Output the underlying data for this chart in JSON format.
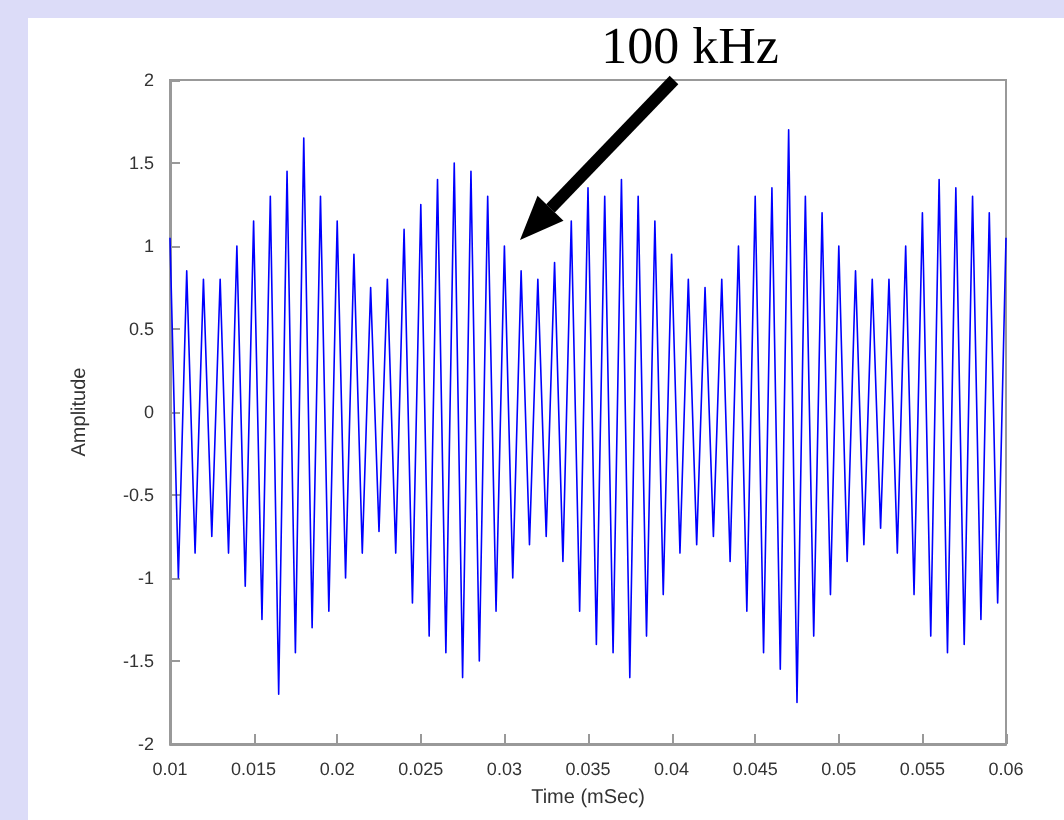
{
  "chart_data": {
    "type": "line",
    "xlabel": "Time (mSec)",
    "ylabel": "Amplitude",
    "annotations": [
      "100 kHz"
    ],
    "x": [
      0.01,
      0.0105,
      0.011,
      0.0115,
      0.012,
      0.0125,
      0.013,
      0.0135,
      0.014,
      0.0145,
      0.015,
      0.0155,
      0.016,
      0.0165,
      0.017,
      0.0175,
      0.018,
      0.0185,
      0.019,
      0.0195,
      0.02,
      0.0205,
      0.021,
      0.0215,
      0.022,
      0.0225,
      0.023,
      0.0235,
      0.024,
      0.0245,
      0.025,
      0.0255,
      0.026,
      0.0265,
      0.027,
      0.0275,
      0.028,
      0.0285,
      0.029,
      0.0295,
      0.03,
      0.0305,
      0.031,
      0.0315,
      0.032,
      0.0325,
      0.033,
      0.0335,
      0.034,
      0.0345,
      0.035,
      0.0355,
      0.036,
      0.0365,
      0.037,
      0.0375,
      0.038,
      0.0385,
      0.039,
      0.0395,
      0.04,
      0.0405,
      0.041,
      0.0415,
      0.042,
      0.0425,
      0.043,
      0.0435,
      0.044,
      0.0445,
      0.045,
      0.0455,
      0.046,
      0.0465,
      0.047,
      0.0475,
      0.048,
      0.0485,
      0.049,
      0.0495,
      0.05,
      0.0505,
      0.051,
      0.0515,
      0.052,
      0.0525,
      0.053,
      0.0535,
      0.054,
      0.0545,
      0.055,
      0.0555,
      0.056,
      0.0565,
      0.057,
      0.0575,
      0.058,
      0.0585,
      0.059,
      0.0595,
      0.06
    ],
    "series": [
      {
        "color": "#0000ff",
        "values": [
          1.05,
          -1.0,
          0.85,
          -0.85,
          0.8,
          -0.75,
          0.8,
          -0.85,
          1.0,
          -1.05,
          1.15,
          -1.25,
          1.3,
          -1.7,
          1.45,
          -1.45,
          1.65,
          -1.3,
          1.3,
          -1.2,
          1.15,
          -1.0,
          0.95,
          -0.85,
          0.75,
          -0.72,
          0.8,
          -0.85,
          1.1,
          -1.15,
          1.25,
          -1.35,
          1.4,
          -1.45,
          1.5,
          -1.6,
          1.45,
          -1.5,
          1.3,
          -1.2,
          1.0,
          -1.0,
          0.85,
          -0.8,
          0.8,
          -0.75,
          0.9,
          -0.9,
          1.15,
          -1.2,
          1.35,
          -1.4,
          1.3,
          -1.45,
          1.4,
          -1.6,
          1.3,
          -1.35,
          1.15,
          -1.1,
          0.95,
          -0.85,
          0.8,
          -0.8,
          0.75,
          -0.75,
          0.8,
          -0.9,
          1.0,
          -1.2,
          1.3,
          -1.45,
          1.35,
          -1.55,
          1.7,
          -1.75,
          1.3,
          -1.35,
          1.2,
          -1.1,
          1.0,
          -0.9,
          0.85,
          -0.8,
          0.8,
          -0.7,
          0.8,
          -0.85,
          1.0,
          -1.1,
          1.2,
          -1.35,
          1.4,
          -1.45,
          1.35,
          -1.4,
          1.3,
          -1.25,
          1.2,
          -1.15,
          1.05
        ]
      }
    ],
    "xlim": [
      0.01,
      0.06
    ],
    "xticks": [
      0.01,
      0.015,
      0.02,
      0.025,
      0.03,
      0.035,
      0.04,
      0.045,
      0.05,
      0.055,
      0.06
    ],
    "ylim": [
      -2,
      2
    ],
    "yticks": [
      -2,
      -1.5,
      -1,
      -0.5,
      0,
      0.5,
      1,
      1.5,
      2
    ],
    "grid": false,
    "marker": "none",
    "line_style": "solid"
  }
}
